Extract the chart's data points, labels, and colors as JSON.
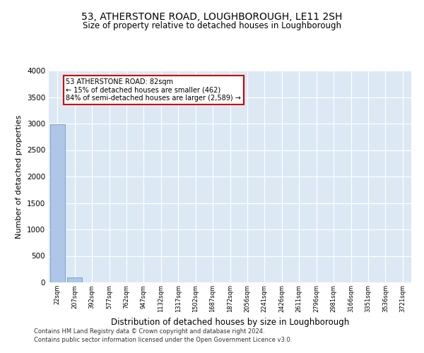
{
  "title": "53, ATHERSTONE ROAD, LOUGHBOROUGH, LE11 2SH",
  "subtitle": "Size of property relative to detached houses in Loughborough",
  "xlabel": "Distribution of detached houses by size in Loughborough",
  "ylabel": "Number of detached properties",
  "footer_line1": "Contains HM Land Registry data © Crown copyright and database right 2024.",
  "footer_line2": "Contains public sector information licensed under the Open Government Licence v3.0.",
  "bar_labels": [
    "22sqm",
    "207sqm",
    "392sqm",
    "577sqm",
    "762sqm",
    "947sqm",
    "1132sqm",
    "1317sqm",
    "1502sqm",
    "1687sqm",
    "1872sqm",
    "2056sqm",
    "2241sqm",
    "2426sqm",
    "2611sqm",
    "2796sqm",
    "2981sqm",
    "3166sqm",
    "3351sqm",
    "3536sqm",
    "3721sqm"
  ],
  "bar_values": [
    2990,
    100,
    0,
    0,
    0,
    0,
    0,
    0,
    0,
    0,
    0,
    0,
    0,
    0,
    0,
    0,
    0,
    0,
    0,
    0,
    0
  ],
  "bar_color": "#aec6e8",
  "bar_edge_color": "#5a8fc0",
  "annotation_text": "53 ATHERSTONE ROAD: 82sqm\n← 15% of detached houses are smaller (462)\n84% of semi-detached houses are larger (2,589) →",
  "annotation_box_color": "#ffffff",
  "annotation_box_edge_color": "#cc0000",
  "ylim": [
    0,
    4000
  ],
  "yticks": [
    0,
    500,
    1000,
    1500,
    2000,
    2500,
    3000,
    3500,
    4000
  ],
  "plot_bg_color": "#dce9f5",
  "grid_color": "#ffffff",
  "title_fontsize": 10,
  "subtitle_fontsize": 8.5,
  "ylabel_fontsize": 8,
  "xlabel_fontsize": 8.5,
  "footer_fontsize": 6,
  "ann_fontsize": 7,
  "tick_fontsize": 6,
  "ytick_fontsize": 7.5
}
